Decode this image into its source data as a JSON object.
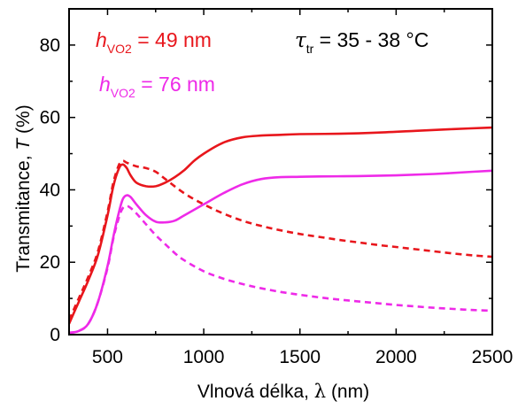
{
  "chart_data": {
    "type": "line",
    "xlabel": {
      "text": "Vlnová délka, ",
      "symbol": "λ",
      "unit": " (nm)"
    },
    "ylabel": {
      "text": "Transmitance, ",
      "symbol": "T",
      "unit": " (%)"
    },
    "xlim": [
      300,
      2500
    ],
    "ylim": [
      0,
      90
    ],
    "xticks": [
      500,
      1000,
      1500,
      2000,
      2500
    ],
    "yticks": [
      0,
      20,
      40,
      60,
      80
    ],
    "annotations": {
      "red": {
        "sym": "h",
        "sub": "VO2",
        "val": " = 49 nm"
      },
      "magenta": {
        "sym": "h",
        "sub": "VO2",
        "val": " = 76 nm"
      },
      "tau": {
        "sym": "τ",
        "sub": "tr",
        "val": " = 35 - 38 °C"
      }
    },
    "colors": {
      "red": "#e8161c",
      "magenta": "#ee2ae8"
    },
    "series": [
      {
        "color": "#e8161c",
        "style": "solid",
        "x": [
          300,
          350,
          400,
          450,
          500,
          530,
          560,
          580,
          600,
          620,
          650,
          700,
          750,
          800,
          850,
          900,
          950,
          1000,
          1100,
          1200,
          1300,
          1400,
          1500,
          1700,
          1900,
          2100,
          2300,
          2500
        ],
        "y": [
          3,
          9,
          15,
          22,
          33,
          41,
          46,
          47,
          46,
          44,
          42,
          41,
          41,
          42,
          43.5,
          45.5,
          48,
          50,
          53,
          54.5,
          55,
          55.2,
          55.4,
          55.5,
          55.8,
          56.3,
          56.8,
          57.2
        ]
      },
      {
        "color": "#e8161c",
        "style": "dashed",
        "x": [
          300,
          350,
          400,
          450,
          500,
          530,
          560,
          580,
          600,
          650,
          700,
          750,
          800,
          900,
          1000,
          1100,
          1200,
          1300,
          1400,
          1500,
          1600,
          1700,
          1800,
          1900,
          2000,
          2100,
          2200,
          2300,
          2400,
          2500
        ],
        "y": [
          4,
          10,
          16,
          23,
          34,
          42,
          47,
          48,
          47.5,
          46.5,
          46,
          45,
          43,
          39,
          36,
          33.5,
          31.5,
          30,
          28.8,
          27.8,
          27,
          26.2,
          25.5,
          24.8,
          24.2,
          23.6,
          23,
          22.4,
          21.9,
          21.5
        ]
      },
      {
        "color": "#ee2ae8",
        "style": "solid",
        "x": [
          300,
          350,
          400,
          450,
          500,
          530,
          560,
          580,
          600,
          620,
          650,
          700,
          750,
          800,
          850,
          900,
          1000,
          1100,
          1200,
          1300,
          1400,
          1500,
          1600,
          1800,
          2000,
          2200,
          2400,
          2500
        ],
        "y": [
          0.5,
          1,
          3,
          9,
          19,
          27,
          34,
          37.5,
          38.5,
          38,
          36,
          33,
          31.2,
          31,
          31.5,
          33,
          36,
          39,
          41.5,
          43,
          43.5,
          43.6,
          43.7,
          43.8,
          44,
          44.4,
          45,
          45.3
        ]
      },
      {
        "color": "#ee2ae8",
        "style": "dashed",
        "x": [
          300,
          350,
          400,
          450,
          500,
          530,
          560,
          580,
          600,
          620,
          650,
          700,
          750,
          800,
          850,
          900,
          1000,
          1100,
          1200,
          1300,
          1400,
          1500,
          1600,
          1700,
          1800,
          1900,
          2000,
          2100,
          2200,
          2300,
          2400,
          2500
        ],
        "y": [
          0.5,
          1,
          3,
          9,
          18.5,
          26.5,
          32.5,
          35,
          35.5,
          35,
          33.5,
          30.5,
          27.5,
          25,
          22.5,
          20.5,
          17.5,
          15.5,
          14,
          12.8,
          11.8,
          11,
          10.3,
          9.7,
          9.2,
          8.7,
          8.2,
          7.8,
          7.4,
          7.1,
          6.8,
          6.6
        ]
      }
    ]
  }
}
